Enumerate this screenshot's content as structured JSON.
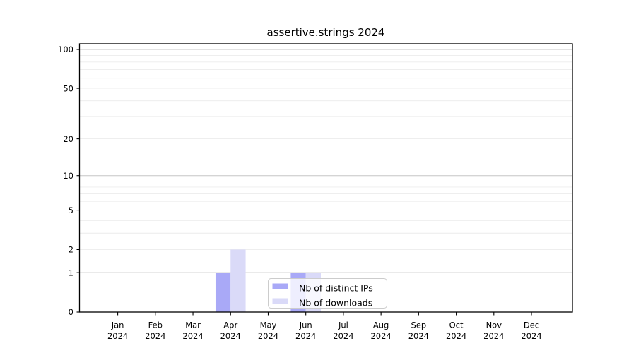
{
  "chart_data": {
    "type": "bar",
    "title": "assertive.strings 2024",
    "categories": [
      "Jan",
      "Feb",
      "Mar",
      "Apr",
      "May",
      "Jun",
      "Jul",
      "Aug",
      "Sep",
      "Oct",
      "Nov",
      "Dec"
    ],
    "x_tick_year": "2024",
    "series": [
      {
        "name": "Nb of distinct IPs",
        "color": "#a9a9f7",
        "values": [
          0,
          0,
          0,
          1,
          0,
          1,
          0,
          0,
          0,
          0,
          0,
          0
        ]
      },
      {
        "name": "Nb of downloads",
        "color": "#dadaf8",
        "values": [
          0,
          0,
          0,
          2,
          0,
          1,
          0,
          0,
          0,
          0,
          0,
          0
        ]
      }
    ],
    "y_ticks": [
      0,
      1,
      2,
      5,
      10,
      20,
      50,
      100
    ],
    "y_scale": "log1p",
    "ylim": [
      0,
      110
    ],
    "grid": "horizontal",
    "grid_major_values": [
      1,
      10,
      100
    ],
    "grid_minor_values": [
      2,
      3,
      4,
      5,
      6,
      7,
      8,
      9,
      20,
      30,
      40,
      50,
      60,
      70,
      80,
      90
    ],
    "legend_position": "lower-center-inside",
    "colors": {
      "spine": "#000000",
      "grid_major": "#c6c6c6",
      "grid_minor": "#ececec",
      "legend_border": "#cccccc",
      "legend_bg": "#ffffff"
    }
  }
}
